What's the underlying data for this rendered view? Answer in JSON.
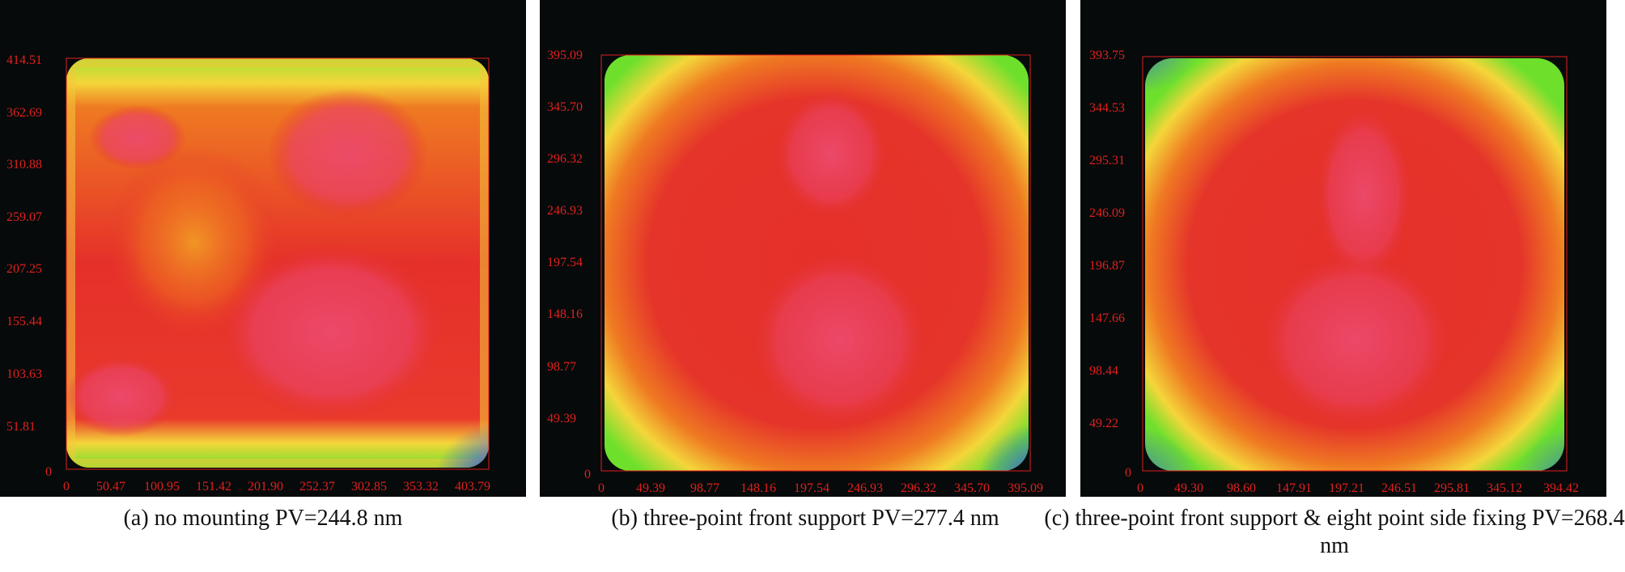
{
  "panels": [
    {
      "caption": "(a) no mounting PV=244.8 nm",
      "y_ticks": [
        "414.51",
        "362.69",
        "310.88",
        "259.07",
        "207.25",
        "155.44",
        "103.63",
        "51.81",
        "0"
      ],
      "x_ticks": [
        "0",
        "50.47",
        "100.95",
        "151.42",
        "201.90",
        "252.37",
        "302.85",
        "353.32",
        "403.79"
      ]
    },
    {
      "caption": "(b) three-point front support PV=277.4 nm",
      "y_ticks": [
        "395.09",
        "345.70",
        "296.32",
        "246.93",
        "197.54",
        "148.16",
        "98.77",
        "49.39",
        "0"
      ],
      "x_ticks": [
        "0",
        "49.39",
        "98.77",
        "148.16",
        "197.54",
        "246.93",
        "296.32",
        "345.70",
        "395.09"
      ]
    },
    {
      "caption": "(c) three-point front support & eight point side fixing PV=268.4 nm",
      "y_ticks": [
        "393.75",
        "344.53",
        "295.31",
        "246.09",
        "196.87",
        "147.66",
        "98.44",
        "49.22",
        "0"
      ],
      "x_ticks": [
        "0",
        "49.30",
        "98.60",
        "147.91",
        "197.21",
        "246.51",
        "295.81",
        "345.12",
        "394.42"
      ]
    }
  ],
  "colors": {
    "background": "#060a0b",
    "tick_color": "#e0201c",
    "map_high": "#ec4a6c",
    "map_mid": "#e52a22",
    "map_orange": "#f07a1e",
    "map_yellow": "#f4e040",
    "map_green": "#6ee02c",
    "map_low": "#2f5ae8"
  }
}
